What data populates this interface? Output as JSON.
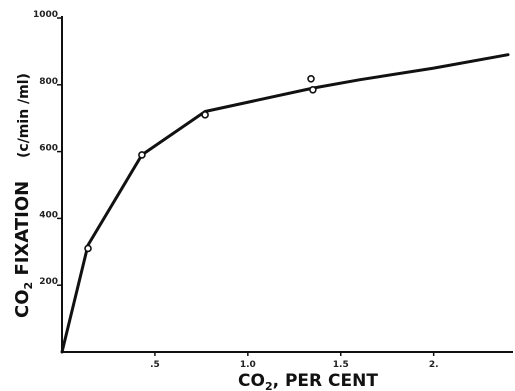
{
  "chart_data": {
    "type": "line",
    "title": "",
    "xlabel_main": "CO",
    "xlabel_sub": "2",
    "xlabel_rest": ", PER CENT",
    "ylabel_main": "CO",
    "ylabel_sub": "2",
    "ylabel_rest": " FIXATION",
    "ylabel_unit": "(c/min /ml)",
    "xlim": [
      0,
      2.4
    ],
    "ylim": [
      0,
      1000
    ],
    "x_ticks": [
      {
        "value": 0.5,
        "label": ".5"
      },
      {
        "value": 1.0,
        "label": "1.0"
      },
      {
        "value": 1.5,
        "label": "1.5"
      },
      {
        "value": 2.0,
        "label": "2."
      }
    ],
    "y_ticks": [
      {
        "value": 200,
        "label": "200"
      },
      {
        "value": 400,
        "label": "400"
      },
      {
        "value": 600,
        "label": "600"
      },
      {
        "value": 800,
        "label": "800"
      },
      {
        "value": 1000,
        "label": "1000"
      }
    ],
    "curve": {
      "x": [
        0,
        0.14,
        0.43,
        0.77,
        1.35,
        1.6,
        2.0,
        2.4
      ],
      "y": [
        0,
        320,
        590,
        720,
        790,
        815,
        850,
        890
      ]
    },
    "points": {
      "x": [
        0.14,
        0.43,
        0.77,
        1.34,
        1.35
      ],
      "y": [
        310,
        590,
        710,
        818,
        785
      ]
    },
    "grid": false,
    "legend": "none"
  }
}
